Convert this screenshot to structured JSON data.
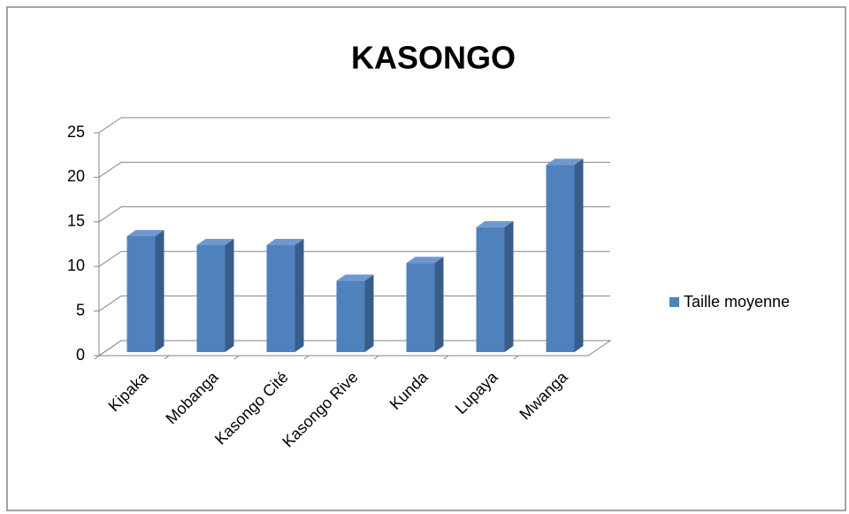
{
  "chart_data": {
    "type": "bar",
    "title": "KASONGO",
    "categories": [
      "Kipaka",
      "Mobanga",
      "Kasongo Cité",
      "Kasongo Rive",
      "Kunda",
      "Lupaya",
      "Mwanga"
    ],
    "series": [
      {
        "name": "Taille moyenne",
        "color": "#4f81bd",
        "values": [
          13,
          12,
          12,
          8,
          10,
          14,
          21
        ]
      }
    ],
    "ylim": [
      0,
      25
    ],
    "yticks": [
      0,
      5,
      10,
      15,
      20,
      25
    ],
    "grid": true,
    "legend": "right"
  }
}
